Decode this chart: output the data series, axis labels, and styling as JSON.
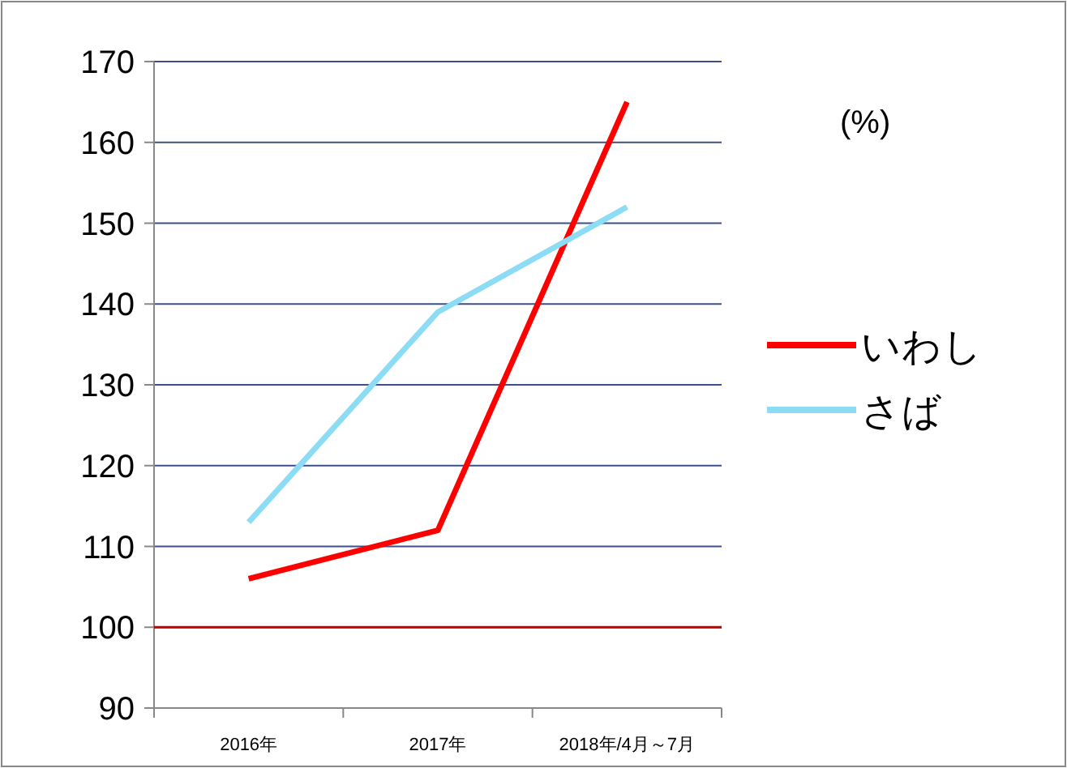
{
  "chart_data": {
    "type": "line",
    "categories": [
      "2016年",
      "2017年",
      "2018年/4月～7月"
    ],
    "series": [
      {
        "name": "いわし",
        "color": "#ff0000",
        "values": [
          106,
          112,
          165
        ]
      },
      {
        "name": "さば",
        "color": "#8ddcf5",
        "values": [
          113,
          139,
          152
        ]
      }
    ],
    "ylim": [
      90,
      170
    ],
    "yticks": [
      90,
      100,
      110,
      120,
      130,
      140,
      150,
      160,
      170
    ],
    "grid": "y",
    "legend": "right",
    "marker": "none",
    "line_style": "solid",
    "ref_lines": [
      {
        "axis": "y",
        "value": 100,
        "label": null,
        "color": "#c00000"
      }
    ],
    "annotations": [
      "(%)"
    ]
  }
}
